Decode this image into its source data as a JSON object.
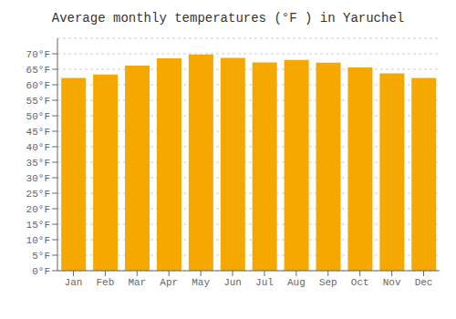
{
  "chart_data": {
    "type": "bar",
    "title": "Average monthly temperatures (°F ) in Yaruchel",
    "categories": [
      "Jan",
      "Feb",
      "Mar",
      "Apr",
      "May",
      "Jun",
      "Jul",
      "Aug",
      "Sep",
      "Oct",
      "Nov",
      "Dec"
    ],
    "values": [
      62.2,
      63.3,
      66.2,
      68.5,
      69.8,
      68.7,
      67.2,
      68.0,
      67.1,
      65.6,
      63.7,
      62.2
    ],
    "color": "#F5A800",
    "ylim": [
      0,
      75
    ],
    "yticks": [
      {
        "value": 0,
        "label": "0°F"
      },
      {
        "value": 5,
        "label": "5°F"
      },
      {
        "value": 10,
        "label": "10°F"
      },
      {
        "value": 15,
        "label": "15°F"
      },
      {
        "value": 20,
        "label": "20°F"
      },
      {
        "value": 25,
        "label": "25°F"
      },
      {
        "value": 30,
        "label": "30°F"
      },
      {
        "value": 35,
        "label": "35°F"
      },
      {
        "value": 40,
        "label": "40°F"
      },
      {
        "value": 45,
        "label": "45°F"
      },
      {
        "value": 50,
        "label": "50°F"
      },
      {
        "value": 55,
        "label": "55°F"
      },
      {
        "value": 60,
        "label": "60°F"
      },
      {
        "value": 65,
        "label": "65°F"
      },
      {
        "value": 70,
        "label": "70°F"
      }
    ],
    "grid": true
  }
}
